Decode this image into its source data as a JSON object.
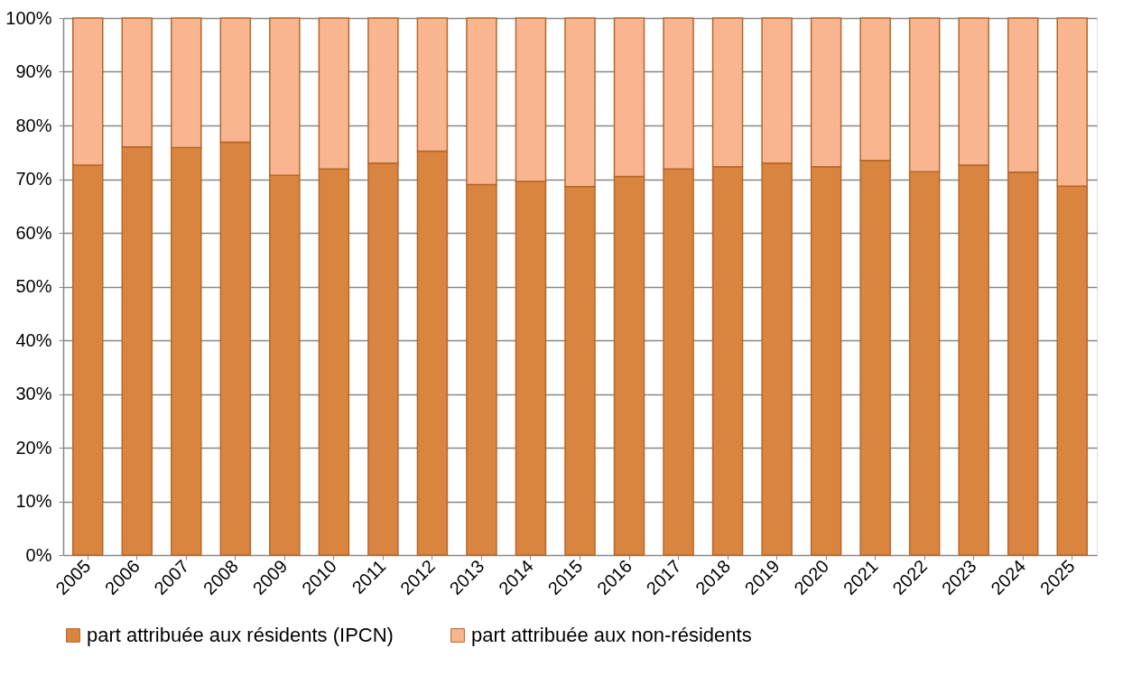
{
  "chart_data": {
    "type": "bar",
    "stacked": true,
    "categories": [
      "2005",
      "2006",
      "2007",
      "2008",
      "2009",
      "2010",
      "2011",
      "2012",
      "2013",
      "2014",
      "2015",
      "2016",
      "2017",
      "2018",
      "2019",
      "2020",
      "2021",
      "2022",
      "2023",
      "2024",
      "2025"
    ],
    "series": [
      {
        "name": "part attribuée aux résidents (IPCN)",
        "color": "#d9843f",
        "values": [
          72.6,
          76.0,
          75.9,
          76.9,
          70.7,
          71.9,
          73.0,
          75.2,
          69.0,
          69.6,
          68.6,
          70.5,
          71.9,
          72.3,
          73.0,
          72.3,
          73.5,
          71.4,
          72.6,
          71.3,
          68.7
        ]
      },
      {
        "name": "part attribuée aux non-résidents",
        "color": "#f9b590",
        "values": [
          27.4,
          24.0,
          24.1,
          23.1,
          29.3,
          28.1,
          27.0,
          24.8,
          31.0,
          30.4,
          31.4,
          29.5,
          28.1,
          27.7,
          27.0,
          27.7,
          26.5,
          28.6,
          27.4,
          28.7,
          31.3
        ]
      }
    ],
    "ylim": [
      0,
      100
    ],
    "yticks": [
      {
        "value": 0,
        "label": "0%"
      },
      {
        "value": 10,
        "label": "10%"
      },
      {
        "value": 20,
        "label": "20%"
      },
      {
        "value": 30,
        "label": "30%"
      },
      {
        "value": 40,
        "label": "40%"
      },
      {
        "value": 50,
        "label": "50%"
      },
      {
        "value": 60,
        "label": "60%"
      },
      {
        "value": 70,
        "label": "70%"
      },
      {
        "value": 80,
        "label": "80%"
      },
      {
        "value": 90,
        "label": "90%"
      },
      {
        "value": 100,
        "label": "100%"
      }
    ],
    "grid": "y",
    "legend": "bottom"
  }
}
